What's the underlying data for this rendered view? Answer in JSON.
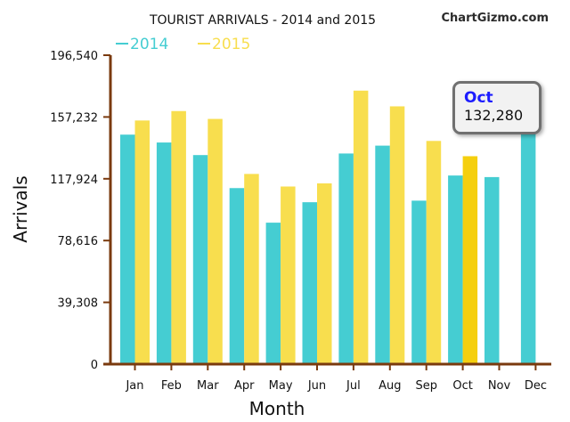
{
  "chart_data": {
    "type": "bar",
    "title": "TOURIST ARRIVALS - 2014 and 2015",
    "watermark": "ChartGizmo.com",
    "xlabel": "Month",
    "ylabel": "Arrivals",
    "categories": [
      "Jan",
      "Feb",
      "Mar",
      "Apr",
      "May",
      "Jun",
      "Jul",
      "Aug",
      "Sep",
      "Oct",
      "Nov",
      "Dec"
    ],
    "series": [
      {
        "name": "2014",
        "color": "#45cdd2",
        "values": [
          146000,
          141000,
          133000,
          112000,
          90000,
          103000,
          134000,
          139000,
          104000,
          120000,
          119000,
          150000
        ]
      },
      {
        "name": "2015",
        "color": "#f8de4e",
        "values": [
          155000,
          161000,
          156000,
          121000,
          113000,
          115000,
          174000,
          164000,
          142000,
          132280,
          null,
          null
        ]
      }
    ],
    "yticks": [
      "196,540",
      "157,232",
      "117,924",
      "78,616",
      "39,308",
      "0"
    ],
    "ylim": [
      0,
      196540
    ],
    "legend_position": "top-left",
    "grid": false,
    "highlight": {
      "series": "2015",
      "category": "Oct",
      "color": "#f5cf0e"
    },
    "tooltip": {
      "month": "Oct",
      "value": "132,280"
    }
  }
}
